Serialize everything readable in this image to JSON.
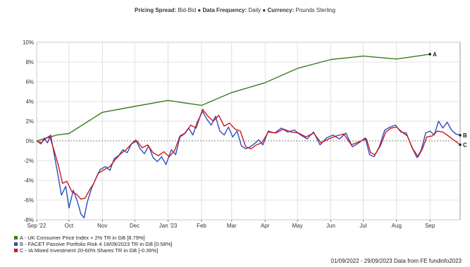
{
  "header": {
    "spread_label": "Pricing Spread:",
    "spread_value": "Bid-Bid",
    "frequency_label": "Data Frequency:",
    "frequency_value": "Daily",
    "currency_label": "Currency:",
    "currency_value": "Pounds Sterling"
  },
  "footer": "01/09/2022 - 29/09/2023 Data from FE fundinfo2023",
  "colors": {
    "A": "#3a7d1e",
    "B": "#2a4fbf",
    "C": "#d01818",
    "grid": "#d7d7d7",
    "zero": "#555555"
  },
  "chart_data": {
    "type": "line",
    "title": "",
    "xlabel": "",
    "ylabel": "",
    "ylim": [
      -8,
      10
    ],
    "yticks": [
      -8,
      -6,
      -4,
      -2,
      0,
      2,
      4,
      6,
      8,
      10
    ],
    "yticklabels": [
      "-8%",
      "-6%",
      "-4%",
      "-2%",
      "0%",
      "2%",
      "4%",
      "6%",
      "8%",
      "10%"
    ],
    "xlim": [
      "2022-09-01",
      "2023-09-29"
    ],
    "xticks": [
      {
        "date": "2022-09-01",
        "label": "Sep '22"
      },
      {
        "date": "2022-10-01",
        "label": "Oct"
      },
      {
        "date": "2022-11-01",
        "label": "Nov"
      },
      {
        "date": "2022-12-01",
        "label": "Dec"
      },
      {
        "date": "2023-01-01",
        "label": "Jan '23"
      },
      {
        "date": "2023-02-01",
        "label": "Feb"
      },
      {
        "date": "2023-03-01",
        "label": "Mar"
      },
      {
        "date": "2023-04-01",
        "label": "Apr"
      },
      {
        "date": "2023-05-01",
        "label": "May"
      },
      {
        "date": "2023-06-01",
        "label": "Jun"
      },
      {
        "date": "2023-07-01",
        "label": "Jul"
      },
      {
        "date": "2023-08-01",
        "label": "Aug"
      },
      {
        "date": "2023-09-01",
        "label": "Sep"
      }
    ],
    "grid": true,
    "legend_position": "bottom-left",
    "series": [
      {
        "key": "A",
        "name": "A - UK Consumer Price Index + 2% TR in GB [8.79%]",
        "end_label": "A",
        "points": [
          [
            "2022-09-01",
            0.0
          ],
          [
            "2022-09-20",
            0.6
          ],
          [
            "2022-10-01",
            0.75
          ],
          [
            "2022-11-01",
            2.9
          ],
          [
            "2022-12-01",
            3.5
          ],
          [
            "2023-01-01",
            4.1
          ],
          [
            "2023-02-01",
            3.6
          ],
          [
            "2023-03-01",
            4.9
          ],
          [
            "2023-04-01",
            5.9
          ],
          [
            "2023-05-01",
            7.35
          ],
          [
            "2023-06-01",
            8.25
          ],
          [
            "2023-07-01",
            8.6
          ],
          [
            "2023-08-01",
            8.3
          ],
          [
            "2023-09-01",
            8.79
          ]
        ]
      },
      {
        "key": "B",
        "name": "B - FACET Passive Portfolio Risk 4 18/09/2023 TR in GB [0.58%]",
        "end_label": "B",
        "points": [
          [
            "2022-09-01",
            0.0
          ],
          [
            "2022-09-05",
            -0.3
          ],
          [
            "2022-09-08",
            0.3
          ],
          [
            "2022-09-11",
            -0.2
          ],
          [
            "2022-09-14",
            0.6
          ],
          [
            "2022-09-17",
            -1.2
          ],
          [
            "2022-09-20",
            -3.0
          ],
          [
            "2022-09-24",
            -5.5
          ],
          [
            "2022-09-28",
            -4.6
          ],
          [
            "2022-10-01",
            -6.8
          ],
          [
            "2022-10-05",
            -5.0
          ],
          [
            "2022-10-09",
            -6.2
          ],
          [
            "2022-10-12",
            -7.4
          ],
          [
            "2022-10-15",
            -7.8
          ],
          [
            "2022-10-18",
            -6.2
          ],
          [
            "2022-10-22",
            -4.8
          ],
          [
            "2022-10-26",
            -3.8
          ],
          [
            "2022-10-30",
            -2.9
          ],
          [
            "2022-11-04",
            -2.6
          ],
          [
            "2022-11-08",
            -3.0
          ],
          [
            "2022-11-12",
            -1.8
          ],
          [
            "2022-11-16",
            -1.5
          ],
          [
            "2022-11-20",
            -0.9
          ],
          [
            "2022-11-24",
            -1.2
          ],
          [
            "2022-11-28",
            -0.3
          ],
          [
            "2022-12-02",
            0.1
          ],
          [
            "2022-12-06",
            -0.8
          ],
          [
            "2022-12-10",
            -1.3
          ],
          [
            "2022-12-14",
            -0.5
          ],
          [
            "2022-12-18",
            -1.7
          ],
          [
            "2022-12-22",
            -2.1
          ],
          [
            "2022-12-26",
            -1.6
          ],
          [
            "2022-12-30",
            -2.4
          ],
          [
            "2023-01-04",
            -0.9
          ],
          [
            "2023-01-08",
            -1.4
          ],
          [
            "2023-01-12",
            0.4
          ],
          [
            "2023-01-16",
            0.7
          ],
          [
            "2023-01-20",
            1.3
          ],
          [
            "2023-01-24",
            0.6
          ],
          [
            "2023-01-28",
            1.9
          ],
          [
            "2023-02-02",
            3.0
          ],
          [
            "2023-02-06",
            2.2
          ],
          [
            "2023-02-10",
            1.6
          ],
          [
            "2023-02-14",
            2.5
          ],
          [
            "2023-02-18",
            1.0
          ],
          [
            "2023-02-22",
            0.6
          ],
          [
            "2023-02-26",
            1.4
          ],
          [
            "2023-03-02",
            0.4
          ],
          [
            "2023-03-06",
            1.0
          ],
          [
            "2023-03-10",
            -0.5
          ],
          [
            "2023-03-14",
            -0.8
          ],
          [
            "2023-03-18",
            -0.6
          ],
          [
            "2023-03-22",
            -0.3
          ],
          [
            "2023-03-26",
            0.1
          ],
          [
            "2023-03-30",
            -0.4
          ],
          [
            "2023-04-04",
            1.0
          ],
          [
            "2023-04-10",
            0.8
          ],
          [
            "2023-04-16",
            1.3
          ],
          [
            "2023-04-22",
            0.9
          ],
          [
            "2023-04-28",
            1.1
          ],
          [
            "2023-05-04",
            0.6
          ],
          [
            "2023-05-10",
            0.2
          ],
          [
            "2023-05-16",
            0.9
          ],
          [
            "2023-05-22",
            -0.4
          ],
          [
            "2023-05-28",
            0.3
          ],
          [
            "2023-06-03",
            0.6
          ],
          [
            "2023-06-09",
            0.2
          ],
          [
            "2023-06-15",
            0.8
          ],
          [
            "2023-06-21",
            -0.6
          ],
          [
            "2023-06-27",
            -0.2
          ],
          [
            "2023-07-03",
            0.3
          ],
          [
            "2023-07-07",
            -1.4
          ],
          [
            "2023-07-11",
            -1.6
          ],
          [
            "2023-07-16",
            -0.6
          ],
          [
            "2023-07-21",
            1.1
          ],
          [
            "2023-07-26",
            1.4
          ],
          [
            "2023-07-31",
            1.6
          ],
          [
            "2023-08-05",
            0.9
          ],
          [
            "2023-08-10",
            0.8
          ],
          [
            "2023-08-15",
            -0.6
          ],
          [
            "2023-08-20",
            -1.7
          ],
          [
            "2023-08-24",
            -0.9
          ],
          [
            "2023-08-28",
            0.8
          ],
          [
            "2023-09-01",
            1.0
          ],
          [
            "2023-09-05",
            0.6
          ],
          [
            "2023-09-09",
            2.0
          ],
          [
            "2023-09-13",
            1.3
          ],
          [
            "2023-09-17",
            1.9
          ],
          [
            "2023-09-21",
            1.1
          ],
          [
            "2023-09-25",
            0.7
          ],
          [
            "2023-09-29",
            0.58
          ]
        ]
      },
      {
        "key": "C",
        "name": "C - IA Mixed Investment 20-60% Shares TR in GB [-0.39%]",
        "end_label": "C",
        "points": [
          [
            "2022-09-01",
            0.0
          ],
          [
            "2022-09-05",
            -0.2
          ],
          [
            "2022-09-09",
            0.2
          ],
          [
            "2022-09-13",
            0.5
          ],
          [
            "2022-09-17",
            -0.9
          ],
          [
            "2022-09-21",
            -2.4
          ],
          [
            "2022-09-25",
            -4.3
          ],
          [
            "2022-09-29",
            -4.1
          ],
          [
            "2022-10-04",
            -5.2
          ],
          [
            "2022-10-08",
            -5.4
          ],
          [
            "2022-10-12",
            -5.9
          ],
          [
            "2022-10-16",
            -5.8
          ],
          [
            "2022-10-20",
            -5.0
          ],
          [
            "2022-10-24",
            -4.3
          ],
          [
            "2022-10-28",
            -3.3
          ],
          [
            "2022-11-03",
            -2.9
          ],
          [
            "2022-11-08",
            -2.6
          ],
          [
            "2022-11-13",
            -1.9
          ],
          [
            "2022-11-18",
            -1.3
          ],
          [
            "2022-11-23",
            -0.9
          ],
          [
            "2022-11-28",
            -0.3
          ],
          [
            "2022-12-03",
            0.0
          ],
          [
            "2022-12-08",
            -0.7
          ],
          [
            "2022-12-13",
            -0.4
          ],
          [
            "2022-12-18",
            -1.2
          ],
          [
            "2022-12-23",
            -1.5
          ],
          [
            "2022-12-28",
            -1.1
          ],
          [
            "2023-01-02",
            -1.6
          ],
          [
            "2023-01-07",
            -1.0
          ],
          [
            "2023-01-12",
            0.5
          ],
          [
            "2023-01-17",
            0.8
          ],
          [
            "2023-01-22",
            1.6
          ],
          [
            "2023-01-27",
            1.3
          ],
          [
            "2023-02-02",
            3.2
          ],
          [
            "2023-02-07",
            2.5
          ],
          [
            "2023-02-12",
            2.0
          ],
          [
            "2023-02-17",
            2.6
          ],
          [
            "2023-02-22",
            1.5
          ],
          [
            "2023-02-27",
            1.8
          ],
          [
            "2023-03-04",
            1.2
          ],
          [
            "2023-03-09",
            1.0
          ],
          [
            "2023-03-14",
            -0.6
          ],
          [
            "2023-03-19",
            -0.8
          ],
          [
            "2023-03-24",
            -0.4
          ],
          [
            "2023-03-29",
            -0.2
          ],
          [
            "2023-04-04",
            0.9
          ],
          [
            "2023-04-11",
            0.8
          ],
          [
            "2023-04-18",
            1.2
          ],
          [
            "2023-04-25",
            0.9
          ],
          [
            "2023-05-02",
            0.8
          ],
          [
            "2023-05-09",
            0.4
          ],
          [
            "2023-05-16",
            0.8
          ],
          [
            "2023-05-23",
            -0.2
          ],
          [
            "2023-05-30",
            0.2
          ],
          [
            "2023-06-06",
            0.5
          ],
          [
            "2023-06-13",
            0.7
          ],
          [
            "2023-06-20",
            -0.4
          ],
          [
            "2023-06-27",
            -0.1
          ],
          [
            "2023-07-04",
            0.2
          ],
          [
            "2023-07-08",
            -1.2
          ],
          [
            "2023-07-12",
            -1.4
          ],
          [
            "2023-07-17",
            -0.5
          ],
          [
            "2023-07-22",
            0.9
          ],
          [
            "2023-07-27",
            1.3
          ],
          [
            "2023-08-01",
            1.4
          ],
          [
            "2023-08-06",
            0.9
          ],
          [
            "2023-08-11",
            0.5
          ],
          [
            "2023-08-16",
            -0.8
          ],
          [
            "2023-08-21",
            -1.6
          ],
          [
            "2023-08-25",
            -0.8
          ],
          [
            "2023-08-29",
            0.4
          ],
          [
            "2023-09-03",
            0.5
          ],
          [
            "2023-09-08",
            1.0
          ],
          [
            "2023-09-13",
            0.9
          ],
          [
            "2023-09-18",
            0.5
          ],
          [
            "2023-09-23",
            0.1
          ],
          [
            "2023-09-29",
            -0.39
          ]
        ]
      }
    ]
  }
}
